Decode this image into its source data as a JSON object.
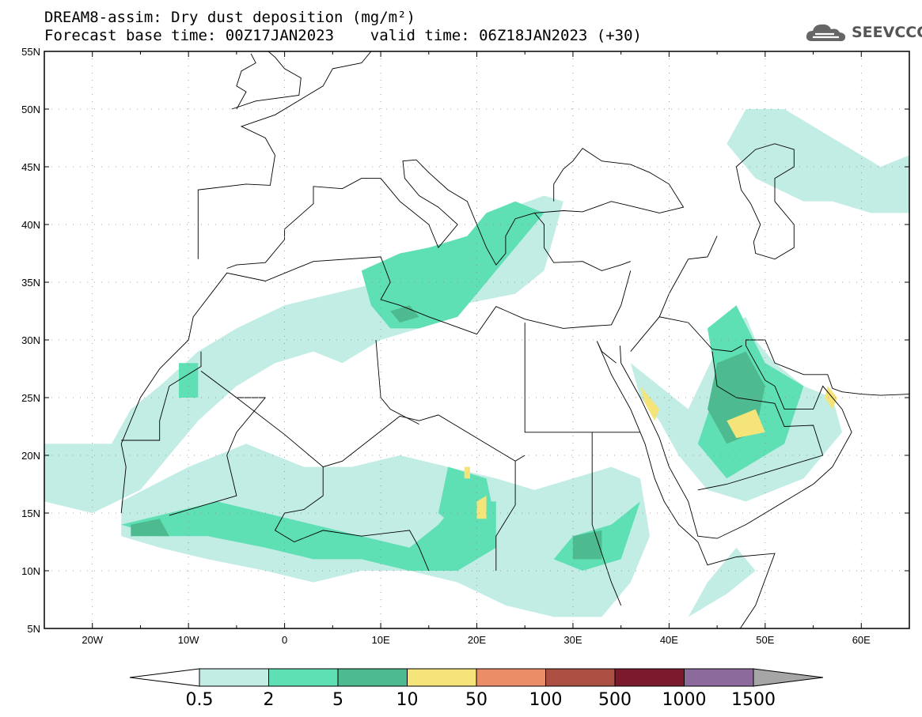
{
  "title": {
    "line1": "DREAM8-assim: Dry dust deposition (mg/m²)",
    "line2": "Forecast base time: 00Z17JAN2023    valid time: 06Z18JAN2023 (+30)"
  },
  "logo": {
    "text": "SEEVCCC",
    "icon": "cloud-icon"
  },
  "map": {
    "lon_range": [
      -25,
      65
    ],
    "lat_range": [
      5,
      55
    ],
    "lat_ticks": [
      {
        "value": 55,
        "label": "55N"
      },
      {
        "value": 50,
        "label": "50N"
      },
      {
        "value": 45,
        "label": "45N"
      },
      {
        "value": 40,
        "label": "40N"
      },
      {
        "value": 35,
        "label": "35N"
      },
      {
        "value": 30,
        "label": "30N"
      },
      {
        "value": 25,
        "label": "25N"
      },
      {
        "value": 20,
        "label": "20N"
      },
      {
        "value": 15,
        "label": "15N"
      },
      {
        "value": 10,
        "label": "10N"
      },
      {
        "value": 5,
        "label": "5N"
      }
    ],
    "lon_ticks": [
      {
        "value": -20,
        "label": "20W"
      },
      {
        "value": -10,
        "label": "10W"
      },
      {
        "value": 0,
        "label": "0"
      },
      {
        "value": 10,
        "label": "10E"
      },
      {
        "value": 20,
        "label": "20E"
      },
      {
        "value": 30,
        "label": "30E"
      },
      {
        "value": 40,
        "label": "40E"
      },
      {
        "value": 50,
        "label": "50E"
      },
      {
        "value": 60,
        "label": "60E"
      }
    ],
    "grid": "dotted"
  },
  "colorbar": {
    "levels": [
      "0.5",
      "2",
      "5",
      "10",
      "50",
      "100",
      "500",
      "1000",
      "1500"
    ],
    "colors": [
      "#ffffff",
      "#c2ede4",
      "#5fdfb4",
      "#4dbb8f",
      "#f5e47a",
      "#eb8e67",
      "#aa4f41",
      "#7a1a2c",
      "#8c6a9c",
      "#a6a6a6"
    ]
  }
}
